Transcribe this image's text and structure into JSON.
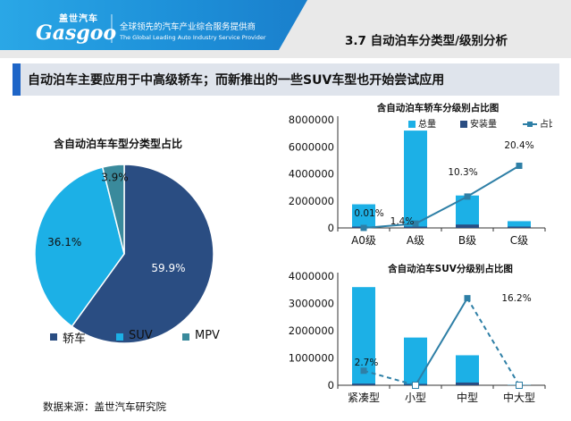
{
  "header": {
    "logo_cn": "盖世汽车",
    "logo_en": "Gasgoo",
    "slogan_cn": "全球领先的汽车产业综合服务提供商",
    "slogan_en": "The Global Leading Auto Industry Service Provider",
    "section_title": "3.7 自动泊车分类型/级别分析"
  },
  "headline": "自动泊车主要应用于中高级轿车；而新推出的一些SUV车型也开始尝试应用",
  "source": "数据来源：盖世汽车研究院",
  "colors": {
    "dark_blue": "#2a4d82",
    "light_blue": "#1cb0e6",
    "teal": "#3a8a9c",
    "line_blue": "#2e7fa6"
  },
  "chart_data": [
    {
      "type": "pie",
      "title": "含自动泊车车型分类型占比",
      "labels": [
        "轿车",
        "SUV",
        "MPV"
      ],
      "values": [
        59.9,
        36.1,
        3.9
      ],
      "data_labels": [
        "59.9%",
        "36.1%",
        "3.9%"
      ],
      "legend": "bottom"
    },
    {
      "type": "bar",
      "title": "含自动泊车轿车分级别占比图",
      "categories": [
        "A0级",
        "A级",
        "B级",
        "C级"
      ],
      "series": [
        {
          "name": "总量",
          "kind": "bar",
          "values": [
            1750000,
            7200000,
            2400000,
            500000
          ]
        },
        {
          "name": "安装量",
          "kind": "bar",
          "values": [
            10000,
            100000,
            250000,
            100000
          ]
        },
        {
          "name": "占比",
          "kind": "line",
          "values": [
            0.01,
            1.4,
            10.3,
            20.4
          ]
        }
      ],
      "data_labels": [
        "0.01%",
        "1.4%",
        "10.3%",
        "20.4%"
      ],
      "y_ticks": [
        "0",
        "2000000",
        "4000000",
        "6000000",
        "8000000"
      ],
      "ylim": [
        0,
        8000000
      ],
      "legend": "top"
    },
    {
      "type": "bar",
      "title": "含自动泊车SUV分级别占比图",
      "categories": [
        "紧凑型",
        "小型",
        "中型",
        "中大型"
      ],
      "series": [
        {
          "name": "总量",
          "kind": "bar",
          "values": [
            3600000,
            1750000,
            1100000,
            10000
          ]
        },
        {
          "name": "安装量",
          "kind": "bar",
          "values": [
            60000,
            5000,
            100000,
            0
          ]
        },
        {
          "name": "占比",
          "kind": "line",
          "values": [
            2.7,
            0,
            16.2,
            0
          ]
        }
      ],
      "data_labels": [
        "2.7%",
        "16.2%"
      ],
      "y_ticks": [
        "0",
        "1000000",
        "2000000",
        "3000000",
        "4000000"
      ],
      "ylim": [
        0,
        4000000
      ]
    }
  ]
}
